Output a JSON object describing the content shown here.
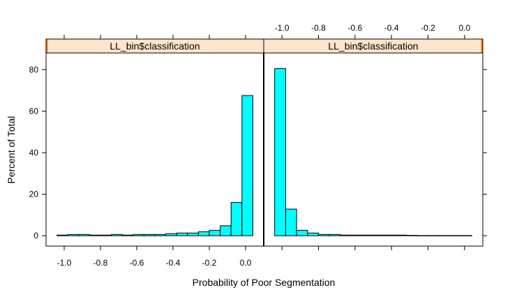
{
  "chart_data": {
    "type": "histogram",
    "layout": "two trellis panels side by side, shared y axis",
    "xlabel": "Probability of Poor Segmentation",
    "ylabel": "Percent of Total",
    "ylim": [
      -5,
      88
    ],
    "xlim": [
      -1.1,
      0.1
    ],
    "x_ticks": [
      -1.0,
      -0.8,
      -0.6,
      -0.4,
      -0.2,
      0.0
    ],
    "x_tick_labels": [
      "-1.0",
      "-0.8",
      "-0.6",
      "-0.4",
      "-0.2",
      "0.0"
    ],
    "y_ticks": [
      0,
      20,
      40,
      60,
      80
    ],
    "y_tick_labels": [
      "0",
      "20",
      "40",
      "60",
      "80"
    ],
    "bin_width": 0.06,
    "bar_fill": "#00ffff",
    "strip_fill": "#ffe5cc",
    "strip_marker_color": "#ff8000",
    "panels": [
      {
        "strip_label": "LL_bin$classification",
        "x_axis_side": "bottom",
        "bin_starts": [
          -1.04,
          -0.98,
          -0.92,
          -0.86,
          -0.8,
          -0.74,
          -0.68,
          -0.62,
          -0.56,
          -0.5,
          -0.44,
          -0.38,
          -0.32,
          -0.26,
          -0.2,
          -0.14,
          -0.08,
          -0.02
        ],
        "values": [
          0.3,
          0.6,
          0.6,
          0.3,
          0.3,
          0.6,
          0.3,
          0.6,
          0.6,
          0.6,
          1.0,
          1.3,
          1.3,
          1.9,
          2.6,
          4.8,
          16.0,
          67.5
        ]
      },
      {
        "strip_label": "LL_bin$classification",
        "x_axis_side": "top",
        "bin_starts": [
          -1.04,
          -0.98,
          -0.92,
          -0.86,
          -0.8,
          -0.74,
          -0.68,
          -0.62,
          -0.56,
          -0.5,
          -0.44,
          -0.38,
          -0.32,
          -0.26,
          -0.2,
          -0.14,
          -0.08,
          -0.02
        ],
        "values": [
          80.5,
          12.8,
          2.6,
          1.3,
          0.6,
          0.6,
          0.3,
          0.3,
          0.3,
          0.3,
          0.3,
          0.3,
          0.2,
          0.1,
          0.1,
          0.1,
          0.1,
          0.1
        ]
      }
    ]
  }
}
